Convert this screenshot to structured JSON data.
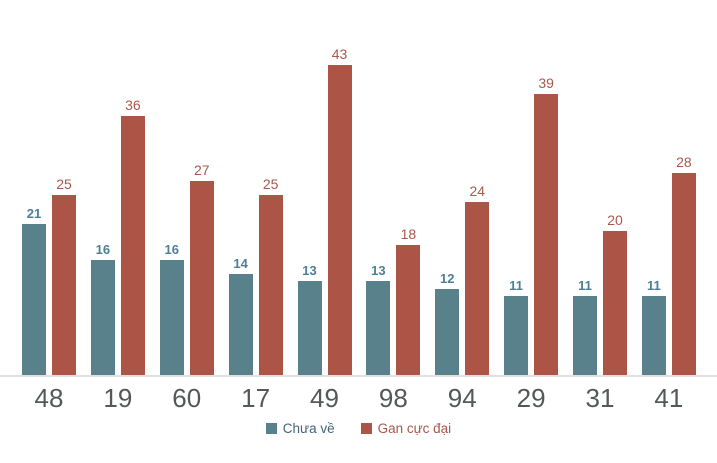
{
  "chart_data": {
    "type": "bar",
    "title": "",
    "xlabel": "",
    "ylabel": "",
    "categories": [
      "48",
      "19",
      "60",
      "17",
      "49",
      "98",
      "94",
      "29",
      "31",
      "41"
    ],
    "series": [
      {
        "name": "Chưa về",
        "values": [
          21,
          16,
          16,
          14,
          13,
          13,
          12,
          11,
          11,
          11
        ],
        "color": "#59818C",
        "label_color": "#4D7F96",
        "legend_text_color": "#456379"
      },
      {
        "name": "Gan cực đại",
        "values": [
          25,
          36,
          27,
          25,
          43,
          18,
          24,
          39,
          20,
          28
        ],
        "color": "#AC5445",
        "label_color": "#A9584E",
        "legend_text_color": "#A8574C"
      }
    ],
    "ylim": [
      0,
      45
    ],
    "grid": false,
    "legend_position": "bottom",
    "value_labels_shown": true,
    "axis_line_color": "#e2e0de",
    "x_tick_color": "#55585b",
    "background_color": "#ffffff"
  }
}
